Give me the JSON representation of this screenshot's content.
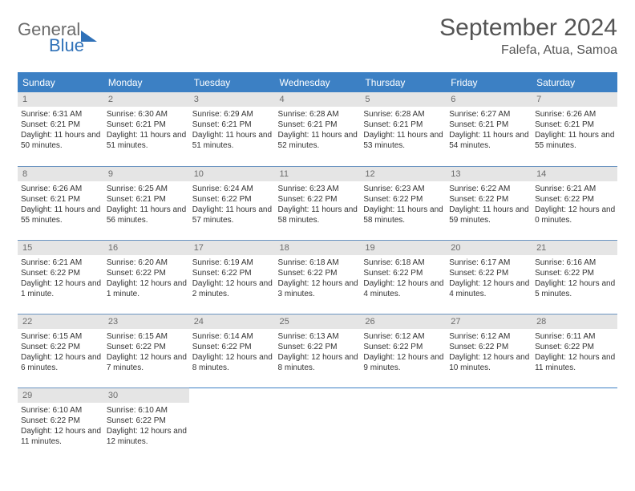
{
  "brand": {
    "part1": "General",
    "part2": "Blue"
  },
  "title": "September 2024",
  "location": "Falefa, Atua, Samoa",
  "colors": {
    "header_blue": "#3c80c4",
    "rule_blue": "#6b94c1",
    "gray_bg": "#e5e5e5",
    "logo_gray": "#6b6b6b",
    "logo_blue": "#2f71b8",
    "text": "#333333",
    "background": "#ffffff"
  },
  "day_names": [
    "Sunday",
    "Monday",
    "Tuesday",
    "Wednesday",
    "Thursday",
    "Friday",
    "Saturday"
  ],
  "days": [
    {
      "n": "1",
      "sunrise": "6:31 AM",
      "sunset": "6:21 PM",
      "daylight": "11 hours and 50 minutes."
    },
    {
      "n": "2",
      "sunrise": "6:30 AM",
      "sunset": "6:21 PM",
      "daylight": "11 hours and 51 minutes."
    },
    {
      "n": "3",
      "sunrise": "6:29 AM",
      "sunset": "6:21 PM",
      "daylight": "11 hours and 51 minutes."
    },
    {
      "n": "4",
      "sunrise": "6:28 AM",
      "sunset": "6:21 PM",
      "daylight": "11 hours and 52 minutes."
    },
    {
      "n": "5",
      "sunrise": "6:28 AM",
      "sunset": "6:21 PM",
      "daylight": "11 hours and 53 minutes."
    },
    {
      "n": "6",
      "sunrise": "6:27 AM",
      "sunset": "6:21 PM",
      "daylight": "11 hours and 54 minutes."
    },
    {
      "n": "7",
      "sunrise": "6:26 AM",
      "sunset": "6:21 PM",
      "daylight": "11 hours and 55 minutes."
    },
    {
      "n": "8",
      "sunrise": "6:26 AM",
      "sunset": "6:21 PM",
      "daylight": "11 hours and 55 minutes."
    },
    {
      "n": "9",
      "sunrise": "6:25 AM",
      "sunset": "6:21 PM",
      "daylight": "11 hours and 56 minutes."
    },
    {
      "n": "10",
      "sunrise": "6:24 AM",
      "sunset": "6:22 PM",
      "daylight": "11 hours and 57 minutes."
    },
    {
      "n": "11",
      "sunrise": "6:23 AM",
      "sunset": "6:22 PM",
      "daylight": "11 hours and 58 minutes."
    },
    {
      "n": "12",
      "sunrise": "6:23 AM",
      "sunset": "6:22 PM",
      "daylight": "11 hours and 58 minutes."
    },
    {
      "n": "13",
      "sunrise": "6:22 AM",
      "sunset": "6:22 PM",
      "daylight": "11 hours and 59 minutes."
    },
    {
      "n": "14",
      "sunrise": "6:21 AM",
      "sunset": "6:22 PM",
      "daylight": "12 hours and 0 minutes."
    },
    {
      "n": "15",
      "sunrise": "6:21 AM",
      "sunset": "6:22 PM",
      "daylight": "12 hours and 1 minute."
    },
    {
      "n": "16",
      "sunrise": "6:20 AM",
      "sunset": "6:22 PM",
      "daylight": "12 hours and 1 minute."
    },
    {
      "n": "17",
      "sunrise": "6:19 AM",
      "sunset": "6:22 PM",
      "daylight": "12 hours and 2 minutes."
    },
    {
      "n": "18",
      "sunrise": "6:18 AM",
      "sunset": "6:22 PM",
      "daylight": "12 hours and 3 minutes."
    },
    {
      "n": "19",
      "sunrise": "6:18 AM",
      "sunset": "6:22 PM",
      "daylight": "12 hours and 4 minutes."
    },
    {
      "n": "20",
      "sunrise": "6:17 AM",
      "sunset": "6:22 PM",
      "daylight": "12 hours and 4 minutes."
    },
    {
      "n": "21",
      "sunrise": "6:16 AM",
      "sunset": "6:22 PM",
      "daylight": "12 hours and 5 minutes."
    },
    {
      "n": "22",
      "sunrise": "6:15 AM",
      "sunset": "6:22 PM",
      "daylight": "12 hours and 6 minutes."
    },
    {
      "n": "23",
      "sunrise": "6:15 AM",
      "sunset": "6:22 PM",
      "daylight": "12 hours and 7 minutes."
    },
    {
      "n": "24",
      "sunrise": "6:14 AM",
      "sunset": "6:22 PM",
      "daylight": "12 hours and 8 minutes."
    },
    {
      "n": "25",
      "sunrise": "6:13 AM",
      "sunset": "6:22 PM",
      "daylight": "12 hours and 8 minutes."
    },
    {
      "n": "26",
      "sunrise": "6:12 AM",
      "sunset": "6:22 PM",
      "daylight": "12 hours and 9 minutes."
    },
    {
      "n": "27",
      "sunrise": "6:12 AM",
      "sunset": "6:22 PM",
      "daylight": "12 hours and 10 minutes."
    },
    {
      "n": "28",
      "sunrise": "6:11 AM",
      "sunset": "6:22 PM",
      "daylight": "12 hours and 11 minutes."
    },
    {
      "n": "29",
      "sunrise": "6:10 AM",
      "sunset": "6:22 PM",
      "daylight": "12 hours and 11 minutes."
    },
    {
      "n": "30",
      "sunrise": "6:10 AM",
      "sunset": "6:22 PM",
      "daylight": "12 hours and 12 minutes."
    }
  ],
  "labels": {
    "sunrise": "Sunrise:",
    "sunset": "Sunset:",
    "daylight": "Daylight:"
  },
  "layout": {
    "start_weekday": 0,
    "cols": 7
  }
}
